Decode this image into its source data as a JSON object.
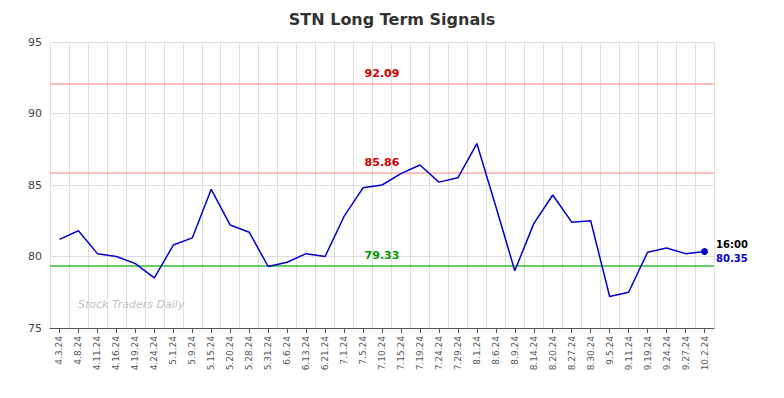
{
  "chart_data": {
    "type": "line",
    "title": "STN Long Term Signals",
    "categories": [
      "4.3.24",
      "4.8.24",
      "4.11.24",
      "4.16.24",
      "4.19.24",
      "4.24.24",
      "5.1.24",
      "5.9.24",
      "5.15.24",
      "5.20.24",
      "5.28.24",
      "5.31.24",
      "6.6.24",
      "6.13.24",
      "6.21.24",
      "7.1.24",
      "7.5.24",
      "7.10.24",
      "7.15.24",
      "7.19.24",
      "7.24.24",
      "7.29.24",
      "8.1.24",
      "8.6.24",
      "8.9.24",
      "8.14.24",
      "8.20.24",
      "8.27.24",
      "8.30.24",
      "9.5.24",
      "9.11.24",
      "9.19.24",
      "9.24.24",
      "9.27.24",
      "10.2.24"
    ],
    "values": [
      81.2,
      81.8,
      80.2,
      80.0,
      79.5,
      78.5,
      80.8,
      81.3,
      84.7,
      82.2,
      81.7,
      79.3,
      79.6,
      80.2,
      80.0,
      82.8,
      84.8,
      85.0,
      85.8,
      86.4,
      85.2,
      85.5,
      87.9,
      83.5,
      79.0,
      82.3,
      84.3,
      82.4,
      82.5,
      77.2,
      77.5,
      80.3,
      80.6,
      80.2,
      80.35
    ],
    "color": "#0000cc",
    "reference_lines": [
      {
        "value": 92.09,
        "color": "#ffaaaa",
        "label_color": "#cc0000"
      },
      {
        "value": 85.86,
        "color": "#ffaaaa",
        "label_color": "#cc0000"
      },
      {
        "value": 79.33,
        "color": "#33bb33",
        "label_color": "#009900"
      }
    ],
    "annotations": [
      {
        "text": "16:00",
        "category": "10.2.24",
        "value": 80.35
      },
      {
        "text": "Stock Traders Daily"
      }
    ],
    "ylim": [
      75,
      95
    ],
    "yticks": [
      75,
      80,
      85,
      90,
      95
    ],
    "grid": true
  }
}
